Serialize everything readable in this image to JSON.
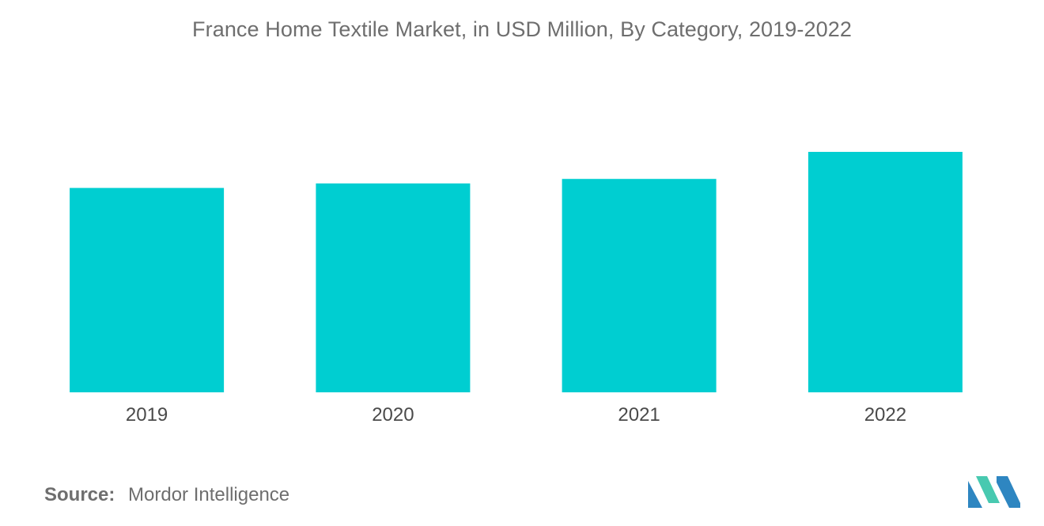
{
  "chart_data": {
    "type": "bar",
    "title": "France Home Textile Market, in USD Million, By Category, 2019-2022",
    "categories": [
      "2019",
      "2020",
      "2021",
      "2022"
    ],
    "values": [
      68,
      69.5,
      71,
      80
    ],
    "ylim": [
      0,
      100
    ],
    "xlabel": "",
    "ylabel": "",
    "grid": false,
    "legend": "none",
    "bar_color": "#00CED1"
  },
  "source": {
    "label": "Source:",
    "value": "Mordor Intelligence"
  },
  "logo": {
    "icon": "mordor-intelligence-logo",
    "colors": [
      "#1B4F72",
      "#2E86C1",
      "#48C9B0"
    ]
  }
}
